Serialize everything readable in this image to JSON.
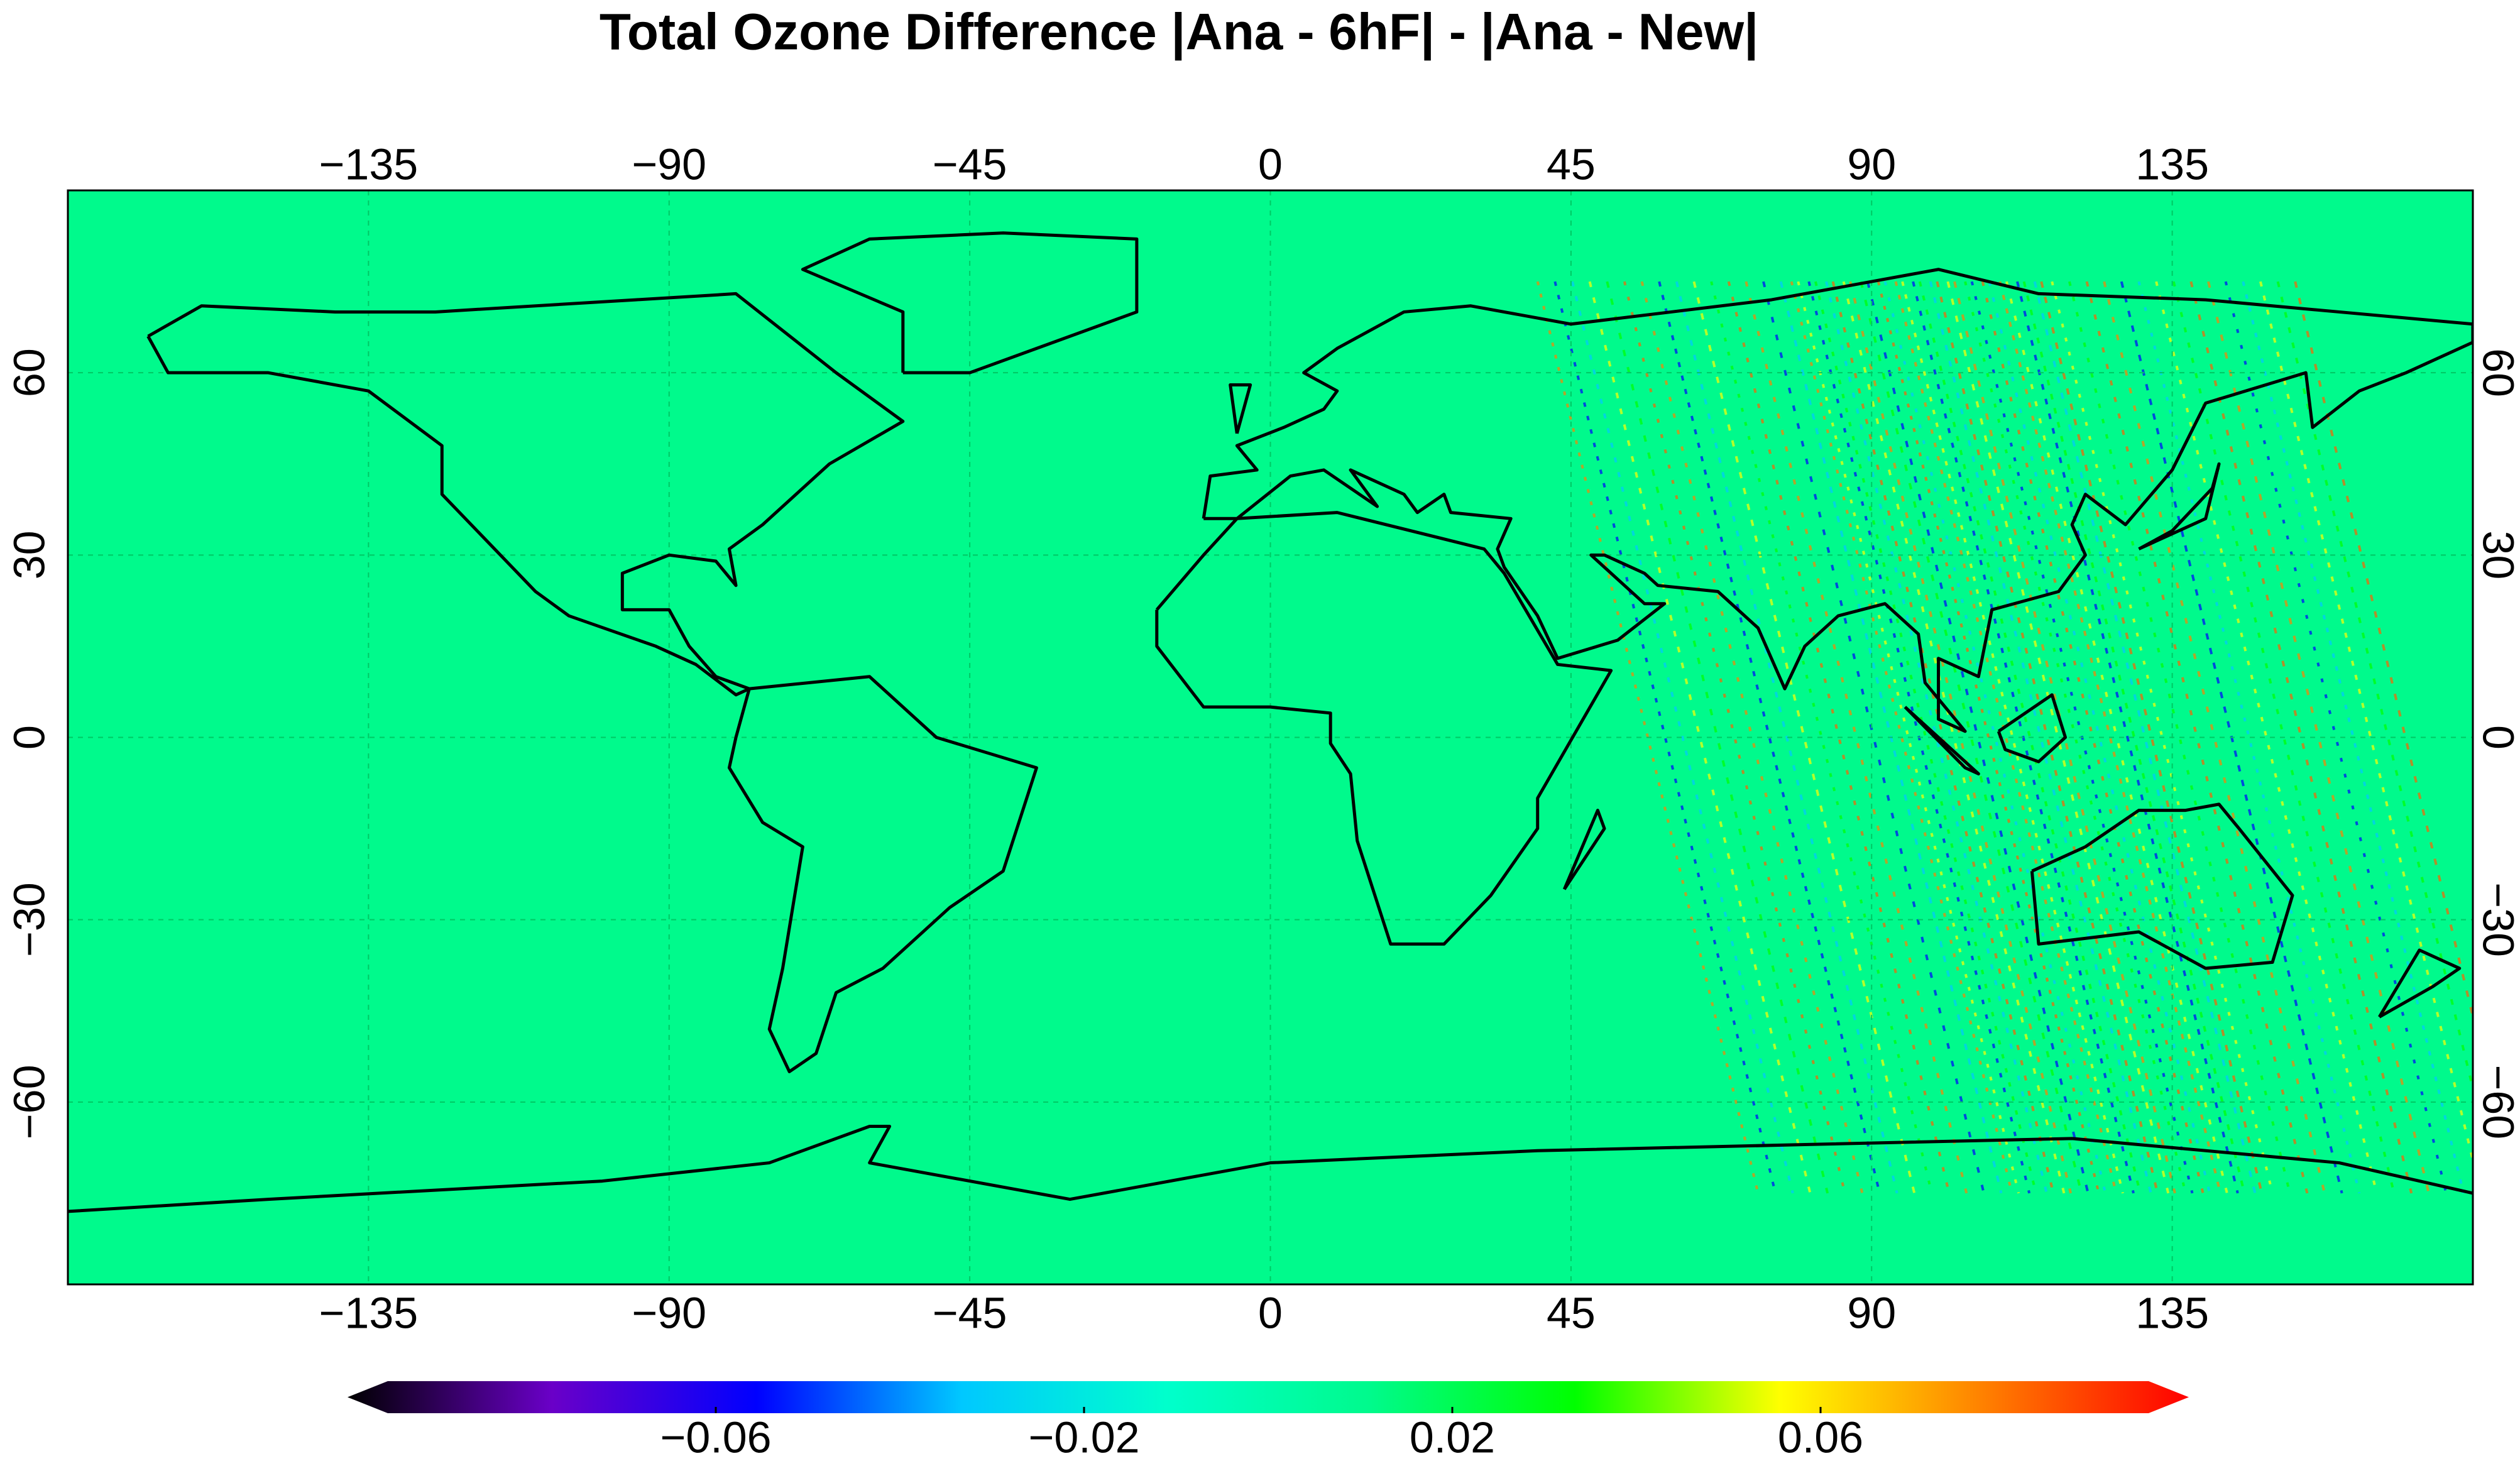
{
  "chart_data": {
    "type": "map",
    "title": "Total Ozone Difference |Ana - 6hF| - |Ana - New|",
    "xlim": [
      -180,
      180
    ],
    "xticks": [
      {
        "value": -135,
        "label": "−135"
      },
      {
        "value": -90,
        "label": "−90"
      },
      {
        "value": -45,
        "label": "−45"
      },
      0,
      45,
      90,
      135
    ],
    "ylim": [
      -90,
      90
    ],
    "yticks": [
      {
        "value": -60,
        "label": "−60"
      },
      {
        "value": -30,
        "label": "−30"
      },
      0,
      30,
      60
    ],
    "grid": true,
    "background": "#00fa8c",
    "colorbar": {
      "clim": [
        -0.1,
        0.1
      ],
      "ticks": [
        {
          "value": -0.06,
          "label": "−0.06"
        },
        {
          "value": -0.02,
          "label": "−0.02"
        },
        0.02,
        0.06
      ],
      "colormap": [
        "#000000",
        "#6a00c8",
        "#0000ff",
        "#00c8ff",
        "#00ffcc",
        "#00fa8c",
        "#00ff00",
        "#ffff00",
        "#ff8000",
        "#ff0000"
      ]
    }
  }
}
